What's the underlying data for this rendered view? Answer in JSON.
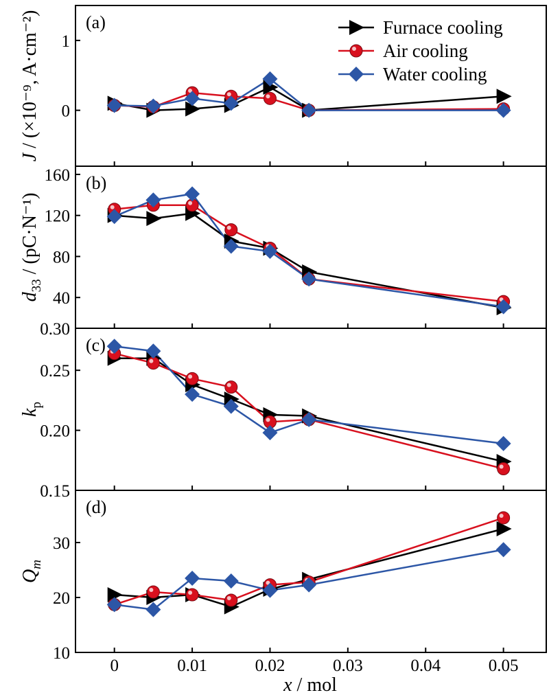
{
  "chart_data": {
    "type": "line",
    "shared_x": {
      "label": "x / mol",
      "label_italic_part": "x",
      "range": [
        -0.005,
        0.0555
      ],
      "ticks": [
        0,
        0.01,
        0.02,
        0.03,
        0.04,
        0.05
      ],
      "tick_labels": [
        "0",
        "0.01",
        "0.02",
        "0.03",
        "0.04",
        "0.05"
      ]
    },
    "legend": {
      "position": "top-right",
      "entries": [
        "Furnace cooling",
        "Air cooling",
        "Water cooling"
      ]
    },
    "series_style": [
      {
        "name": "Furnace cooling",
        "color": "#000000",
        "marker": "triangle-right"
      },
      {
        "name": "Air cooling",
        "color": "#d8101e",
        "marker": "circle"
      },
      {
        "name": "Water cooling",
        "color": "#2c56a6",
        "marker": "diamond"
      }
    ],
    "panels": [
      {
        "id": "a",
        "panel_label": "(a)",
        "ylabel": "J / (×10⁻⁹, A·cm⁻²)",
        "ylim": [
          -0.8,
          1.5
        ],
        "yticks": [
          0,
          1
        ],
        "ytick_labels": [
          "0",
          "1"
        ],
        "x": [
          0,
          0.005,
          0.01,
          0.015,
          0.02,
          0.025,
          0.05
        ],
        "series": [
          {
            "name": "Furnace cooling",
            "values": [
              0.1,
              0.0,
              0.02,
              0.07,
              0.33,
              0.0,
              0.2
            ]
          },
          {
            "name": "Air cooling",
            "values": [
              0.07,
              0.05,
              0.25,
              0.2,
              0.17,
              0.0,
              0.02
            ]
          },
          {
            "name": "Water cooling",
            "values": [
              0.07,
              0.06,
              0.17,
              0.1,
              0.45,
              0.0,
              0.0
            ]
          }
        ]
      },
      {
        "id": "b",
        "panel_label": "(b)",
        "ylabel": "d33 / (pC·N⁻¹)",
        "ylim": [
          10,
          168
        ],
        "yticks": [
          40,
          80,
          120,
          160
        ],
        "ytick_labels": [
          "40",
          "80",
          "120",
          "160"
        ],
        "bottom_label": "0.30",
        "x": [
          0,
          0.005,
          0.01,
          0.015,
          0.02,
          0.025,
          0.05
        ],
        "series": [
          {
            "name": "Furnace cooling",
            "values": [
              120,
              117,
              122,
              95,
              88,
              65,
              30
            ]
          },
          {
            "name": "Air cooling",
            "values": [
              126,
              130,
              130,
              106,
              88,
              58,
              36
            ]
          },
          {
            "name": "Water cooling",
            "values": [
              119,
              135,
              141,
              90,
              85,
              58,
              31
            ]
          }
        ]
      },
      {
        "id": "c",
        "panel_label": "(c)",
        "ylabel": "kp",
        "ylim": [
          0.15,
          0.285
        ],
        "yticks": [
          0.15,
          0.2,
          0.25
        ],
        "ytick_labels": [
          "0.15",
          "0.20",
          "0.25"
        ],
        "x": [
          0,
          0.005,
          0.01,
          0.015,
          0.02,
          0.025,
          0.05
        ],
        "series": [
          {
            "name": "Furnace cooling",
            "values": [
              0.26,
              0.26,
              0.238,
              0.226,
              0.213,
              0.212,
              0.174
            ]
          },
          {
            "name": "Air cooling",
            "values": [
              0.264,
              0.256,
              0.243,
              0.236,
              0.207,
              0.209,
              0.168
            ]
          },
          {
            "name": "Water cooling",
            "values": [
              0.27,
              0.266,
              0.23,
              0.22,
              0.198,
              0.209,
              0.189
            ]
          }
        ]
      },
      {
        "id": "d",
        "panel_label": "(d)",
        "ylabel": "Qm",
        "ylim": [
          10,
          39.5
        ],
        "yticks": [
          10,
          20,
          30
        ],
        "ytick_labels": [
          "10",
          "20",
          "30"
        ],
        "x": [
          0,
          0.005,
          0.01,
          0.015,
          0.02,
          0.025,
          0.05
        ],
        "series": [
          {
            "name": "Furnace cooling",
            "values": [
              20.5,
              20.0,
              20.5,
              18.3,
              21.5,
              23.3,
              32.5
            ]
          },
          {
            "name": "Air cooling",
            "values": [
              18.7,
              21.0,
              20.5,
              19.5,
              22.3,
              22.8,
              34.5
            ]
          },
          {
            "name": "Water cooling",
            "values": [
              18.7,
              17.8,
              23.5,
              23.0,
              21.3,
              22.3,
              28.7
            ]
          }
        ]
      }
    ]
  }
}
